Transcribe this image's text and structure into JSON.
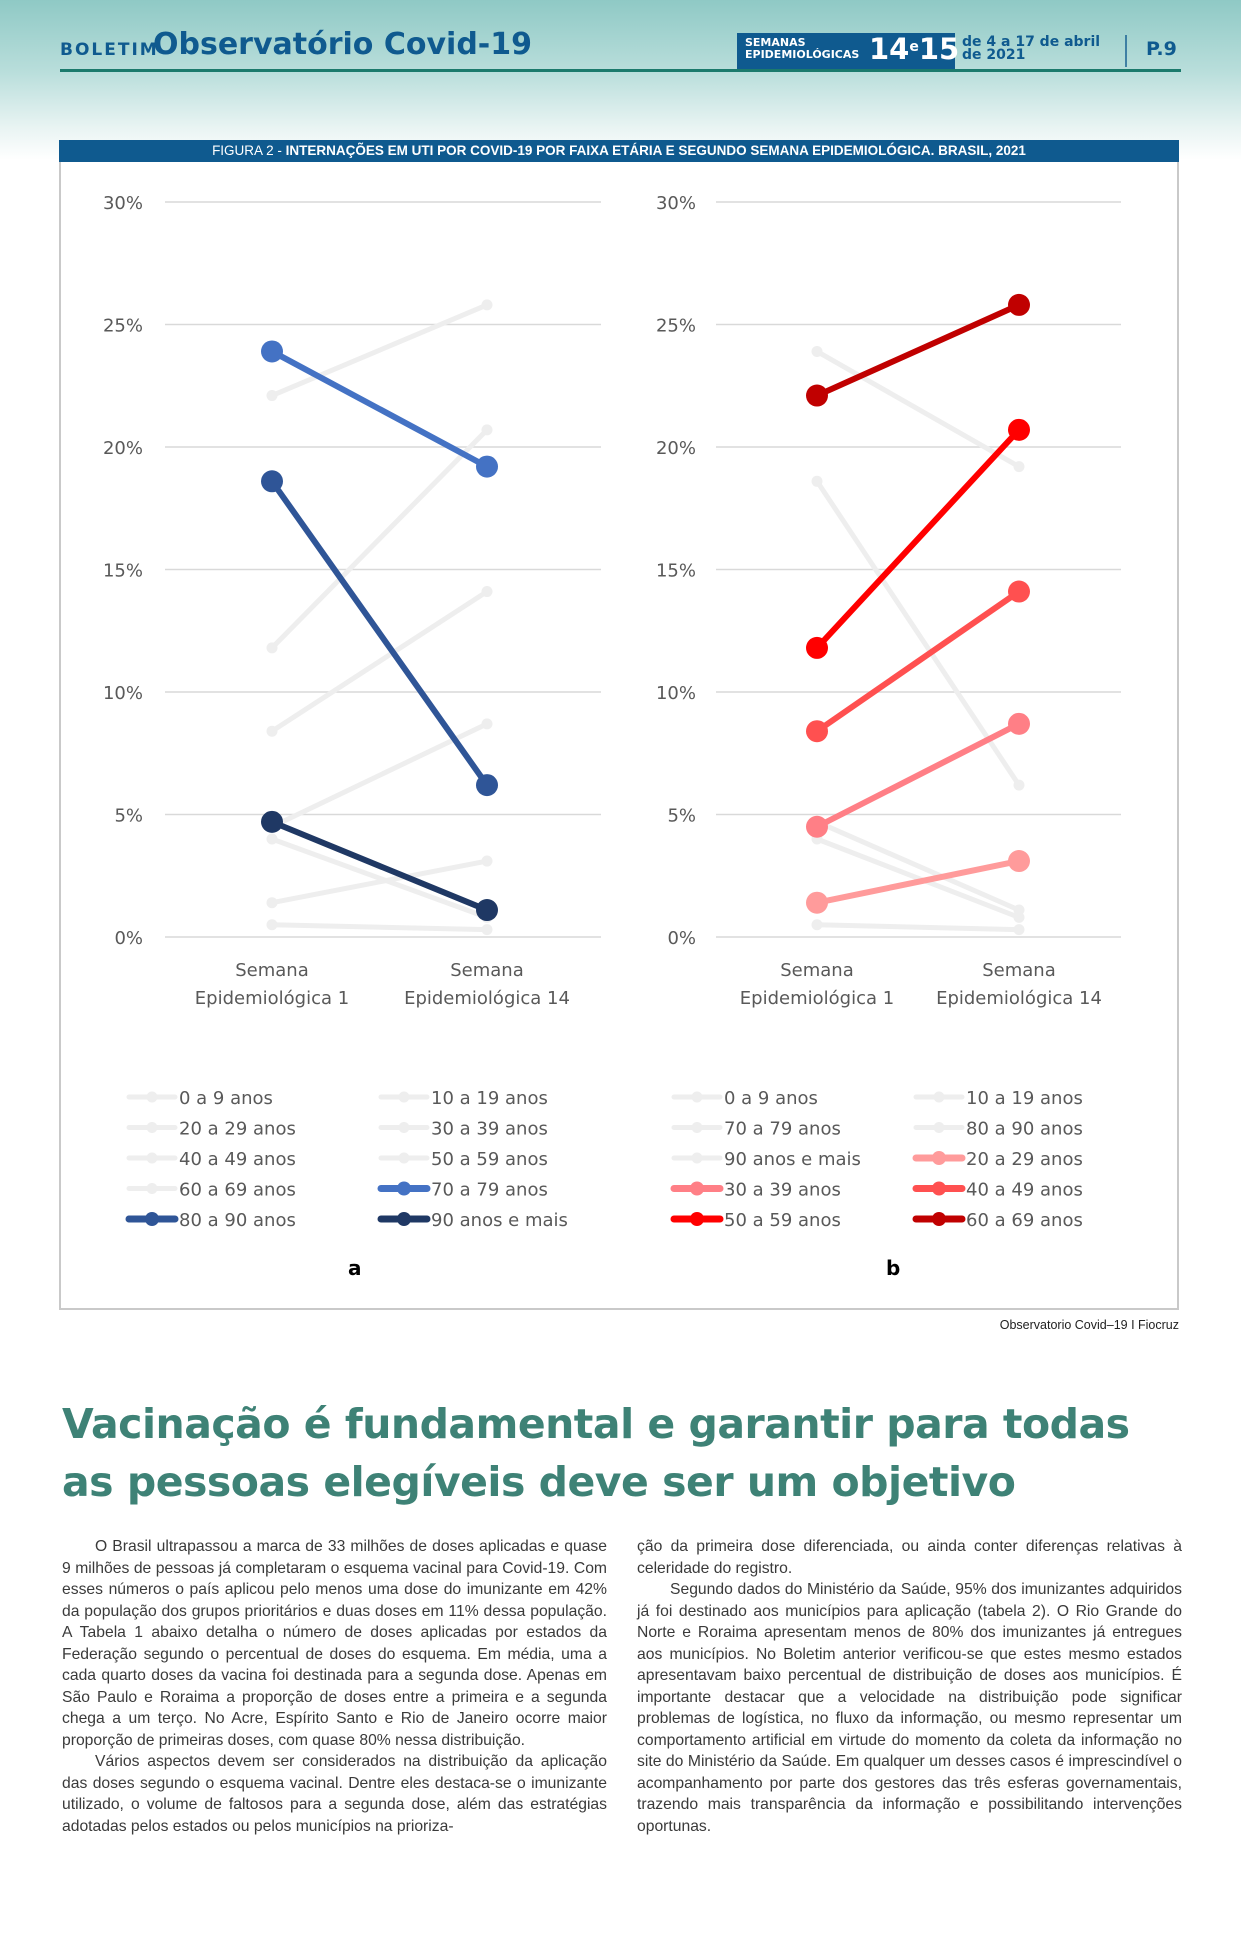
{
  "header": {
    "boletim": "BOLETIM",
    "brand": "Observatório Covid-19",
    "weeks_label_line1": "SEMANAS",
    "weeks_label_line2": "EPIDEMIOLÓGICAS",
    "weeks_num_a": "14",
    "weeks_conj": "e",
    "weeks_num_b": "15",
    "dates_line1": "de 4 a 17 de abril",
    "dates_line2": "de 2021",
    "page": "P.9"
  },
  "figure": {
    "prefix": "FIGURA 2 - ",
    "title": "INTERNAÇÕES EM UTI POR COVID-19 POR FAIXA ETÁRIA E SEGUNDO SEMANA EPIDEMIOLÓGICA. BRASIL, 2021",
    "credit": "Observatorio Covid–19 I Fiocruz",
    "grey_color": "#eeeeee"
  },
  "chart_data": [
    {
      "type": "line",
      "panel": "a",
      "title": "",
      "x": [
        "Semana Epidemiológica 1",
        "Semana Epidemiológica 14"
      ],
      "y_ticks": [
        "0%",
        "5%",
        "10%",
        "15%",
        "20%",
        "25%",
        "30%"
      ],
      "ylim": [
        0,
        30
      ],
      "grid": true,
      "legend_position": "bottom",
      "series": [
        {
          "name": "0 a 9 anos",
          "values": [
            0.5,
            0.3
          ],
          "color": "#eeeeee",
          "highlight": false
        },
        {
          "name": "10 a 19 anos",
          "values": [
            4.0,
            0.8
          ],
          "color": "#eeeeee",
          "highlight": false
        },
        {
          "name": "20 a 29 anos",
          "values": [
            1.4,
            3.1
          ],
          "color": "#eeeeee",
          "highlight": false
        },
        {
          "name": "30 a 39 anos",
          "values": [
            4.5,
            8.7
          ],
          "color": "#eeeeee",
          "highlight": false
        },
        {
          "name": "40 a 49 anos",
          "values": [
            8.4,
            14.1
          ],
          "color": "#eeeeee",
          "highlight": false
        },
        {
          "name": "50 a 59 anos",
          "values": [
            11.8,
            20.7
          ],
          "color": "#eeeeee",
          "highlight": false
        },
        {
          "name": "60 a 69 anos",
          "values": [
            22.1,
            25.8
          ],
          "color": "#eeeeee",
          "highlight": false
        },
        {
          "name": "70 a 79 anos",
          "values": [
            23.9,
            19.2
          ],
          "color": "#4472c4",
          "highlight": true
        },
        {
          "name": "80 a 90 anos",
          "values": [
            18.6,
            6.2
          ],
          "color": "#2f5597",
          "highlight": true
        },
        {
          "name": "90 anos e mais",
          "values": [
            4.7,
            1.1
          ],
          "color": "#1f3864",
          "highlight": true
        }
      ],
      "legend_order": [
        "0 a 9 anos",
        "10 a 19 anos",
        "20 a 29 anos",
        "30 a 39 anos",
        "40 a 49 anos",
        "50 a 59 anos",
        "60 a 69 anos",
        "70 a 79 anos",
        "80 a 90 anos",
        "90 anos e mais"
      ]
    },
    {
      "type": "line",
      "panel": "b",
      "title": "",
      "x": [
        "Semana Epidemiológica 1",
        "Semana Epidemiológica 14"
      ],
      "y_ticks": [
        "0%",
        "5%",
        "10%",
        "15%",
        "20%",
        "25%",
        "30%"
      ],
      "ylim": [
        0,
        30
      ],
      "grid": true,
      "legend_position": "bottom",
      "series": [
        {
          "name": "0 a 9 anos",
          "values": [
            0.5,
            0.3
          ],
          "color": "#eeeeee",
          "highlight": false
        },
        {
          "name": "10 a 19 anos",
          "values": [
            4.0,
            0.8
          ],
          "color": "#eeeeee",
          "highlight": false
        },
        {
          "name": "70 a 79 anos",
          "values": [
            23.9,
            19.2
          ],
          "color": "#eeeeee",
          "highlight": false
        },
        {
          "name": "80 a 90 anos",
          "values": [
            18.6,
            6.2
          ],
          "color": "#eeeeee",
          "highlight": false
        },
        {
          "name": "90 anos e mais",
          "values": [
            4.7,
            1.1
          ],
          "color": "#eeeeee",
          "highlight": false
        },
        {
          "name": "20 a 29 anos",
          "values": [
            1.4,
            3.1
          ],
          "color": "#ff9b9b",
          "highlight": true
        },
        {
          "name": "30 a 39 anos",
          "values": [
            4.5,
            8.7
          ],
          "color": "#ff7f86",
          "highlight": true
        },
        {
          "name": "40 a 49 anos",
          "values": [
            8.4,
            14.1
          ],
          "color": "#ff5050",
          "highlight": true
        },
        {
          "name": "50 a 59 anos",
          "values": [
            11.8,
            20.7
          ],
          "color": "#ff0000",
          "highlight": true
        },
        {
          "name": "60 a 69 anos",
          "values": [
            22.1,
            25.8
          ],
          "color": "#c00000",
          "highlight": true
        }
      ],
      "legend_order": [
        "0 a 9 anos",
        "10 a 19 anos",
        "70 a 79 anos",
        "80 a 90 anos",
        "90 anos e mais",
        "20 a 29 anos",
        "30 a 39 anos",
        "40 a 49 anos",
        "50 a 59 anos",
        "60 a 69 anos"
      ]
    }
  ],
  "panels": {
    "a": "a",
    "b": "b"
  },
  "article": {
    "title_line1": "Vacinação é fundamental e garantir para todas",
    "title_line2": "as pessoas elegíveis deve ser um objetivo",
    "col1_p1": "O Brasil ultrapassou a marca de 33 milhões de doses aplicadas e quase 9 milhões de pessoas já completaram o esquema vacinal para Covid-19. Com esses números o país aplicou pelo menos uma dose do imunizante em 42% da população dos grupos prioritários e duas doses em 11% dessa população. A Tabela 1 abaixo detalha o número de doses aplicadas por estados da Federação segundo o percentual de doses do esquema. Em média, uma a cada quarto doses da vacina foi destinada para a segunda dose. Apenas em São Paulo e Roraima a proporção de doses entre a primeira e a segunda chega a um terço. No Acre, Espírito Santo e Rio de Janeiro ocorre maior proporção de primeiras doses, com quase 80% nessa distribuição.",
    "col1_p2": "Vários aspectos devem ser considerados na distribuição da aplicação das doses segundo o esquema vacinal. Dentre eles destaca-se o imunizante utilizado, o volume de faltosos para a segunda dose, além das estratégias adotadas pelos estados ou pelos municípios na prioriza-",
    "col2_p1": "ção da primeira dose diferenciada, ou ainda conter diferenças relativas à celeridade do registro.",
    "col2_p2": "Segundo dados do Ministério da Saúde, 95% dos imunizantes adquiridos já foi destinado aos municípios para aplicação (tabela 2). O Rio Grande do Norte e Roraima apresentam menos de 80% dos imunizantes já entregues aos municípios. No Boletim anterior verificou-se que estes mesmo estados apresentavam baixo percentual de distribuição de doses aos municípios. É importante destacar que a velocidade na distribuição pode significar problemas de logística, no fluxo da informação, ou mesmo representar um comportamento artificial em virtude do momento da coleta da informação no site do Ministério da Saúde. Em qualquer um desses casos é imprescindível o acompanhamento por parte dos gestores das três esferas governamentais, trazendo mais transparência da informação e possibilitando intervenções oportunas."
  }
}
